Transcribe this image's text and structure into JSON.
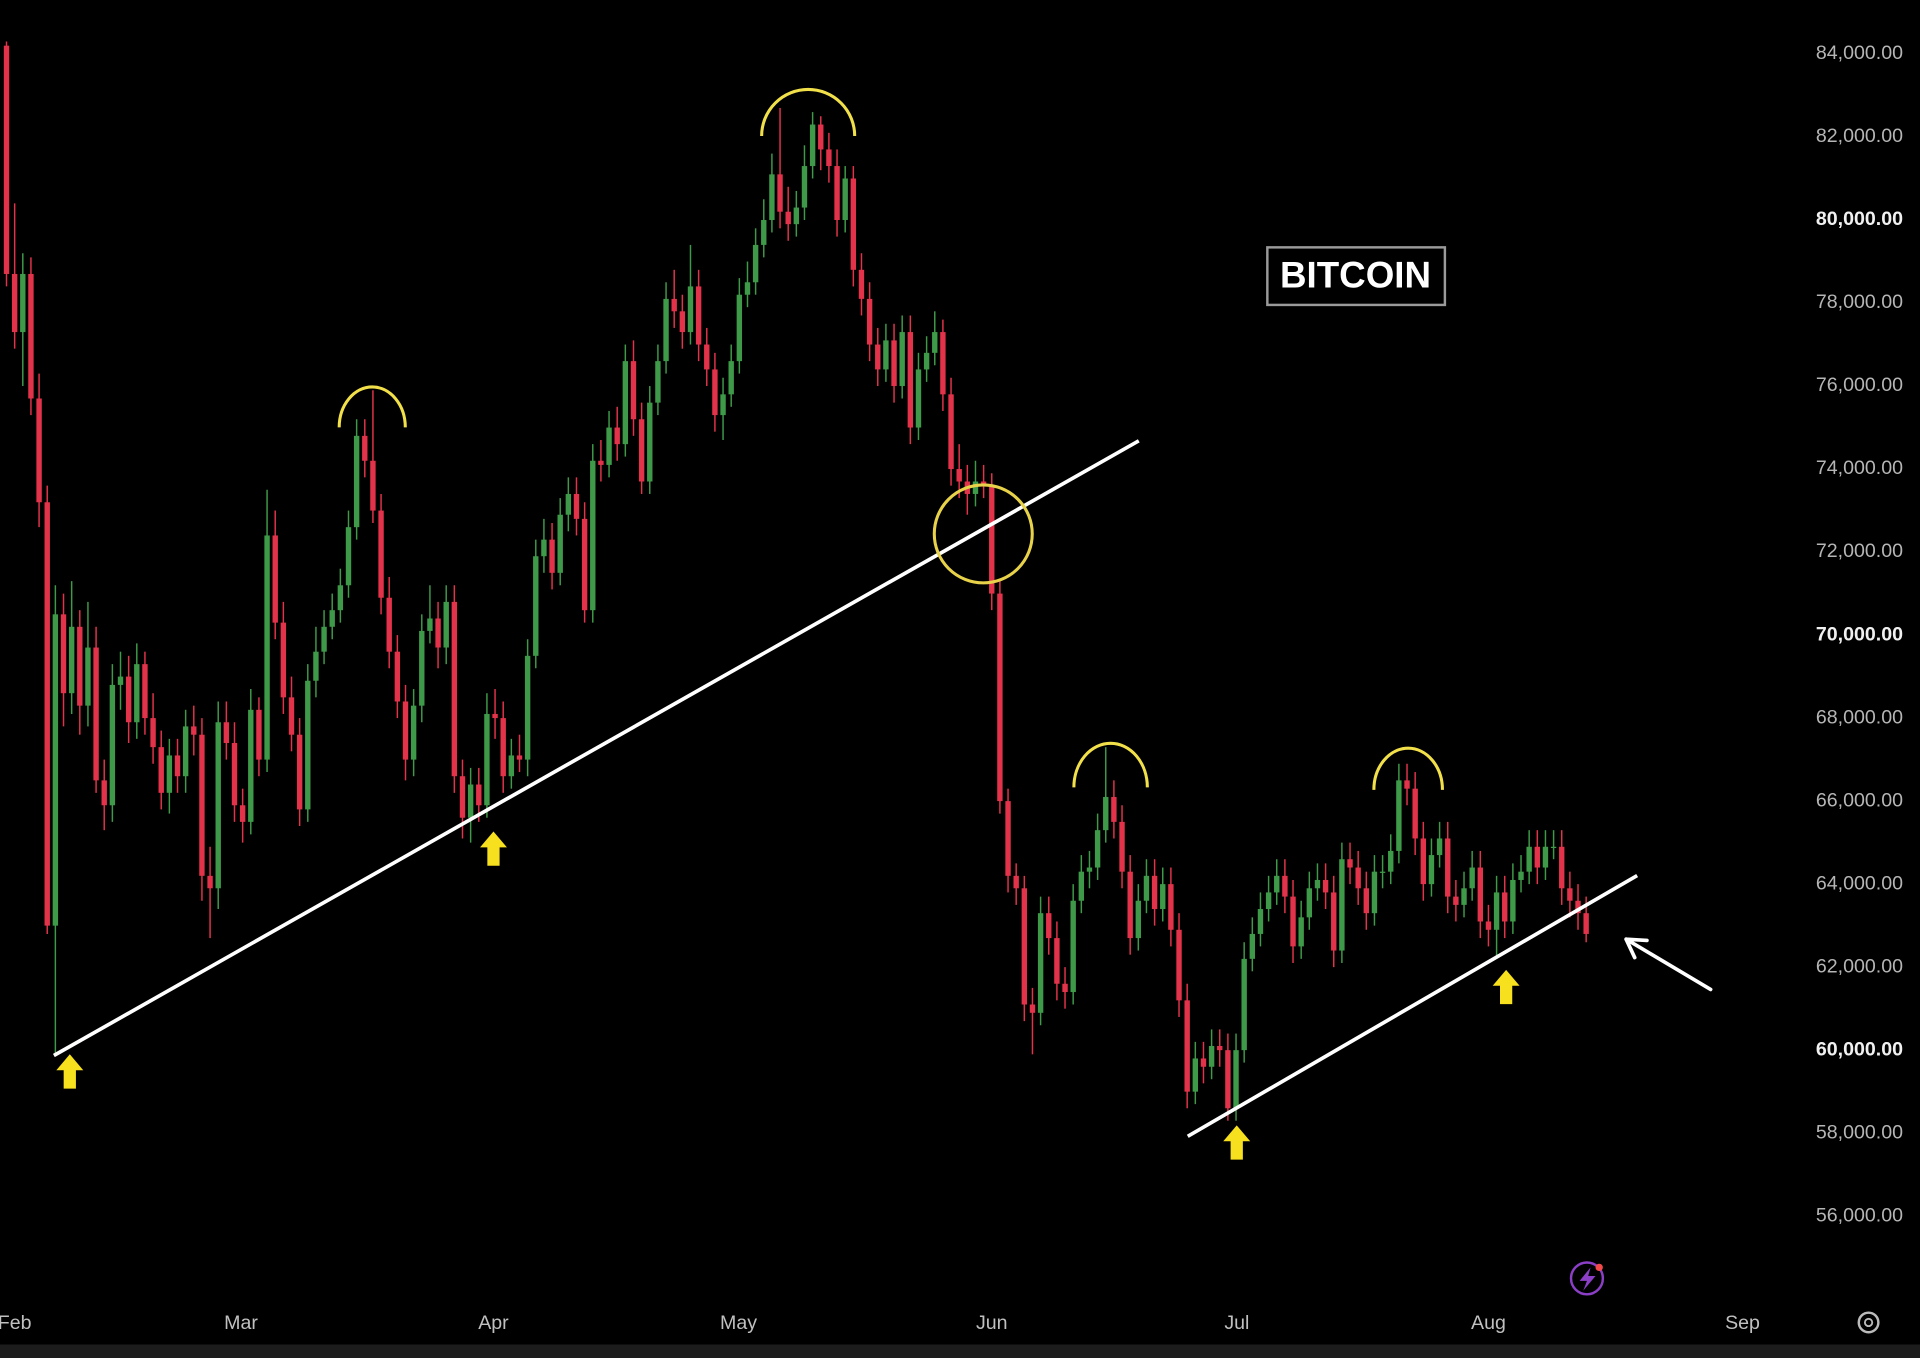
{
  "chart_data": {
    "type": "candlestick",
    "title": "BITCOIN",
    "up_color": "#3e9a48",
    "down_color": "#e2334a",
    "ylim": [
      54000,
      85300
    ],
    "yticks": [
      {
        "value": 56000,
        "label": "56,000.00"
      },
      {
        "value": 58000,
        "label": "58,000.00"
      },
      {
        "value": 60000,
        "label": "60,000.00"
      },
      {
        "value": 62000,
        "label": "62,000.00"
      },
      {
        "value": 64000,
        "label": "64,000.00"
      },
      {
        "value": 66000,
        "label": "66,000.00"
      },
      {
        "value": 68000,
        "label": "68,000.00"
      },
      {
        "value": 70000,
        "label": "70,000.00"
      },
      {
        "value": 72000,
        "label": "72,000.00"
      },
      {
        "value": 74000,
        "label": "74,000.00"
      },
      {
        "value": 76000,
        "label": "76,000.00"
      },
      {
        "value": 78000,
        "label": "78,000.00"
      },
      {
        "value": 80000,
        "label": "80,000.00"
      },
      {
        "value": 82000,
        "label": "82,000.00"
      },
      {
        "value": 84000,
        "label": "84,000.00"
      }
    ],
    "xlim": [
      -0.8,
      235
    ],
    "xticks": [
      {
        "value": 1,
        "label": "Feb"
      },
      {
        "value": 28.8,
        "label": "Mar"
      },
      {
        "value": 59.8,
        "label": "Apr"
      },
      {
        "value": 89.9,
        "label": "May"
      },
      {
        "value": 121,
        "label": "Jun"
      },
      {
        "value": 151.1,
        "label": "Jul"
      },
      {
        "value": 182,
        "label": "Aug"
      },
      {
        "value": 213.2,
        "label": "Sep"
      }
    ],
    "candles": [
      [
        84200,
        84300,
        78400,
        78700
      ],
      [
        78700,
        80400,
        76900,
        77300
      ],
      [
        77300,
        79200,
        76000,
        78700
      ],
      [
        78700,
        79100,
        75300,
        75700
      ],
      [
        75700,
        76300,
        72600,
        73200
      ],
      [
        73200,
        73600,
        62800,
        63000
      ],
      [
        63000,
        71200,
        59900,
        70500
      ],
      [
        70500,
        71000,
        67800,
        68600
      ],
      [
        68600,
        71300,
        68100,
        70200
      ],
      [
        70200,
        70600,
        67600,
        68300
      ],
      [
        68300,
        70800,
        67800,
        69700
      ],
      [
        69700,
        70200,
        66200,
        66500
      ],
      [
        66500,
        67000,
        65300,
        65900
      ],
      [
        65900,
        69300,
        65500,
        68800
      ],
      [
        68800,
        69600,
        68200,
        69000
      ],
      [
        69000,
        69500,
        67400,
        67900
      ],
      [
        67900,
        69800,
        67500,
        69300
      ],
      [
        69300,
        69600,
        67600,
        68000
      ],
      [
        68000,
        68600,
        66900,
        67300
      ],
      [
        67300,
        67700,
        65800,
        66200
      ],
      [
        66200,
        67500,
        65700,
        67100
      ],
      [
        67100,
        67500,
        66200,
        66600
      ],
      [
        66600,
        68200,
        66200,
        67800
      ],
      [
        67800,
        68300,
        67100,
        67600
      ],
      [
        67600,
        68000,
        63600,
        64200
      ],
      [
        64200,
        64900,
        62700,
        63900
      ],
      [
        63900,
        68400,
        63400,
        67900
      ],
      [
        67900,
        68400,
        67000,
        67400
      ],
      [
        67400,
        67900,
        65500,
        65900
      ],
      [
        65900,
        66300,
        65000,
        65500
      ],
      [
        65500,
        68700,
        65200,
        68200
      ],
      [
        68200,
        68500,
        66600,
        67000
      ],
      [
        67000,
        73500,
        66700,
        72400
      ],
      [
        72400,
        73000,
        69900,
        70300
      ],
      [
        70300,
        70800,
        68100,
        68500
      ],
      [
        68500,
        69000,
        67200,
        67600
      ],
      [
        67600,
        68000,
        65400,
        65800
      ],
      [
        65800,
        69300,
        65500,
        68900
      ],
      [
        68900,
        70200,
        68500,
        69600
      ],
      [
        69600,
        70600,
        69300,
        70200
      ],
      [
        70200,
        71000,
        69900,
        70600
      ],
      [
        70600,
        71600,
        70300,
        71200
      ],
      [
        71200,
        73000,
        70900,
        72600
      ],
      [
        72600,
        75200,
        72300,
        74800
      ],
      [
        74800,
        75200,
        73800,
        74200
      ],
      [
        74200,
        75900,
        72700,
        73000
      ],
      [
        73000,
        73400,
        70500,
        70900
      ],
      [
        70900,
        71400,
        69200,
        69600
      ],
      [
        69600,
        70000,
        68000,
        68400
      ],
      [
        68400,
        68800,
        66500,
        67000
      ],
      [
        67000,
        68700,
        66600,
        68300
      ],
      [
        68300,
        70500,
        67900,
        70100
      ],
      [
        70100,
        71200,
        69800,
        70400
      ],
      [
        70400,
        70800,
        69200,
        69700
      ],
      [
        69700,
        71200,
        69300,
        70800
      ],
      [
        70800,
        71200,
        66200,
        66600
      ],
      [
        66600,
        67000,
        65100,
        65600
      ],
      [
        65600,
        66800,
        65000,
        66400
      ],
      [
        66400,
        66800,
        65500,
        65900
      ],
      [
        65900,
        68600,
        65600,
        68100
      ],
      [
        68100,
        68700,
        67500,
        68000
      ],
      [
        68000,
        68400,
        66200,
        66600
      ],
      [
        66600,
        67500,
        66300,
        67100
      ],
      [
        67100,
        67600,
        66700,
        67000
      ],
      [
        67000,
        69900,
        66600,
        69500
      ],
      [
        69500,
        72300,
        69200,
        71900
      ],
      [
        71900,
        72800,
        71500,
        72300
      ],
      [
        72300,
        72700,
        71100,
        71500
      ],
      [
        71500,
        73300,
        71200,
        72900
      ],
      [
        72900,
        73800,
        72500,
        73400
      ],
      [
        73400,
        73800,
        72400,
        72800
      ],
      [
        72800,
        73200,
        70300,
        70600
      ],
      [
        70600,
        74600,
        70300,
        74200
      ],
      [
        74200,
        74700,
        73700,
        74100
      ],
      [
        74100,
        75400,
        73800,
        75000
      ],
      [
        75000,
        75500,
        74200,
        74600
      ],
      [
        74600,
        77000,
        74300,
        76600
      ],
      [
        76600,
        77100,
        74800,
        75200
      ],
      [
        75200,
        75600,
        73400,
        73700
      ],
      [
        73700,
        76000,
        73400,
        75600
      ],
      [
        75600,
        77000,
        75300,
        76600
      ],
      [
        76600,
        78500,
        76300,
        78100
      ],
      [
        78100,
        78800,
        77400,
        77800
      ],
      [
        77800,
        78200,
        76900,
        77300
      ],
      [
        77300,
        79400,
        77000,
        78400
      ],
      [
        78400,
        78800,
        76600,
        77000
      ],
      [
        77000,
        77400,
        76000,
        76400
      ],
      [
        76400,
        76800,
        74900,
        75300
      ],
      [
        75300,
        76200,
        74700,
        75800
      ],
      [
        75800,
        77000,
        75500,
        76600
      ],
      [
        76600,
        78600,
        76300,
        78200
      ],
      [
        78200,
        79000,
        77900,
        78500
      ],
      [
        78500,
        79800,
        78200,
        79400
      ],
      [
        79400,
        80500,
        79100,
        80000
      ],
      [
        80000,
        81600,
        79700,
        81100
      ],
      [
        81100,
        82700,
        79800,
        80200
      ],
      [
        80200,
        80800,
        79500,
        79900
      ],
      [
        79900,
        80700,
        79600,
        80300
      ],
      [
        80300,
        81800,
        80000,
        81300
      ],
      [
        81300,
        82600,
        81000,
        82300
      ],
      [
        82300,
        82500,
        81200,
        81700
      ],
      [
        81700,
        82100,
        80900,
        81300
      ],
      [
        81300,
        81700,
        79600,
        80000
      ],
      [
        80000,
        81300,
        79700,
        81000
      ],
      [
        81000,
        81300,
        78400,
        78800
      ],
      [
        78800,
        79200,
        77700,
        78100
      ],
      [
        78100,
        78500,
        76600,
        77000
      ],
      [
        77000,
        77400,
        76000,
        76400
      ],
      [
        76400,
        77500,
        76100,
        77100
      ],
      [
        77100,
        77500,
        75600,
        76000
      ],
      [
        76000,
        77700,
        75700,
        77300
      ],
      [
        77300,
        77700,
        74600,
        75000
      ],
      [
        75000,
        76800,
        74700,
        76400
      ],
      [
        76400,
        77200,
        76100,
        76800
      ],
      [
        76800,
        77800,
        76500,
        77300
      ],
      [
        77300,
        77600,
        75400,
        75800
      ],
      [
        75800,
        76200,
        73600,
        74000
      ],
      [
        74000,
        74600,
        73300,
        73700
      ],
      [
        73700,
        74100,
        72900,
        73400
      ],
      [
        73400,
        74200,
        73100,
        73700
      ],
      [
        73700,
        74100,
        73300,
        73600
      ],
      [
        73600,
        73900,
        70600,
        71000
      ],
      [
        71000,
        71300,
        65700,
        66000
      ],
      [
        66000,
        66300,
        63800,
        64200
      ],
      [
        64200,
        64500,
        63500,
        63900
      ],
      [
        63900,
        64200,
        60700,
        61100
      ],
      [
        61100,
        61500,
        59900,
        60900
      ],
      [
        60900,
        63700,
        60600,
        63300
      ],
      [
        63300,
        63700,
        62300,
        62700
      ],
      [
        62700,
        63100,
        61200,
        61600
      ],
      [
        61600,
        62000,
        61000,
        61400
      ],
      [
        61400,
        64000,
        61100,
        63600
      ],
      [
        63600,
        64700,
        63300,
        64300
      ],
      [
        64300,
        64800,
        63900,
        64400
      ],
      [
        64400,
        65700,
        64100,
        65300
      ],
      [
        65300,
        67300,
        65000,
        66100
      ],
      [
        66100,
        66500,
        65100,
        65500
      ],
      [
        65500,
        65900,
        63900,
        64300
      ],
      [
        64300,
        64700,
        62300,
        62700
      ],
      [
        62700,
        64000,
        62400,
        63600
      ],
      [
        63600,
        64600,
        63300,
        64200
      ],
      [
        64200,
        64600,
        63000,
        63400
      ],
      [
        63400,
        64400,
        63100,
        64000
      ],
      [
        64000,
        64400,
        62500,
        62900
      ],
      [
        62900,
        63300,
        60800,
        61200
      ],
      [
        61200,
        61600,
        58600,
        59000
      ],
      [
        59000,
        60200,
        58700,
        59800
      ],
      [
        59800,
        60200,
        59200,
        59600
      ],
      [
        59600,
        60500,
        59300,
        60100
      ],
      [
        60100,
        60500,
        59600,
        60000
      ],
      [
        60000,
        60400,
        58300,
        58600
      ],
      [
        58600,
        60400,
        58300,
        60000
      ],
      [
        60000,
        62600,
        59700,
        62200
      ],
      [
        62200,
        63200,
        61900,
        62800
      ],
      [
        62800,
        63800,
        62500,
        63400
      ],
      [
        63400,
        64200,
        63100,
        63800
      ],
      [
        63800,
        64600,
        63500,
        64200
      ],
      [
        64200,
        64600,
        63300,
        63700
      ],
      [
        63700,
        64100,
        62100,
        62500
      ],
      [
        62500,
        63600,
        62200,
        63200
      ],
      [
        63200,
        64300,
        62900,
        63900
      ],
      [
        63900,
        64500,
        63600,
        64100
      ],
      [
        64100,
        64500,
        63400,
        63800
      ],
      [
        63800,
        64200,
        62000,
        62400
      ],
      [
        62400,
        65000,
        62100,
        64600
      ],
      [
        64600,
        65000,
        64000,
        64400
      ],
      [
        64400,
        64800,
        63500,
        63900
      ],
      [
        63900,
        64300,
        62900,
        63300
      ],
      [
        63300,
        64700,
        63000,
        64300
      ],
      [
        64300,
        64700,
        63900,
        64300
      ],
      [
        64300,
        65200,
        64000,
        64800
      ],
      [
        64800,
        66900,
        64500,
        66500
      ],
      [
        66500,
        66900,
        65900,
        66300
      ],
      [
        66300,
        66700,
        64700,
        65100
      ],
      [
        65100,
        65500,
        63600,
        64000
      ],
      [
        64000,
        65100,
        63700,
        64700
      ],
      [
        64700,
        65500,
        64400,
        65100
      ],
      [
        65100,
        65500,
        63300,
        63700
      ],
      [
        63700,
        64100,
        63100,
        63500
      ],
      [
        63500,
        64300,
        63200,
        63900
      ],
      [
        63900,
        64800,
        63600,
        64400
      ],
      [
        64400,
        64800,
        62700,
        63100
      ],
      [
        63100,
        63500,
        62500,
        62900
      ],
      [
        62900,
        64200,
        62200,
        63800
      ],
      [
        63800,
        64200,
        62700,
        63100
      ],
      [
        63100,
        64500,
        62800,
        64100
      ],
      [
        64100,
        64700,
        63800,
        64300
      ],
      [
        64300,
        65300,
        64000,
        64900
      ],
      [
        64900,
        65300,
        64000,
        64400
      ],
      [
        64400,
        65300,
        64100,
        64900
      ],
      [
        64900,
        65300,
        64600,
        64900
      ],
      [
        64900,
        65300,
        63500,
        63900
      ],
      [
        63900,
        64300,
        63200,
        63600
      ],
      [
        63600,
        64000,
        62900,
        63300
      ],
      [
        63300,
        63700,
        62600,
        62800
      ]
    ]
  }
}
